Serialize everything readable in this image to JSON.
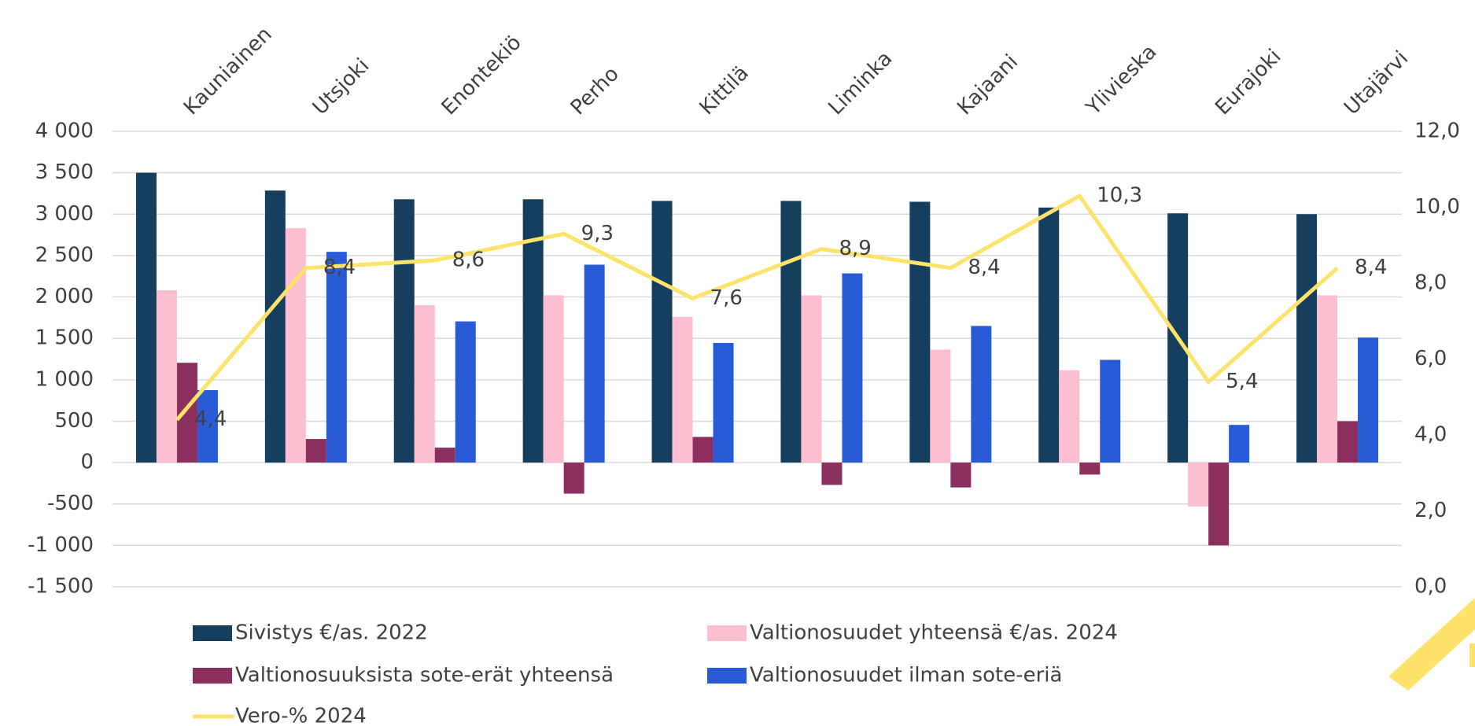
{
  "chart_data": {
    "type": "bar",
    "categories": [
      "Kauniainen",
      "Utsjoki",
      "Enontekiö",
      "Perho",
      "Kittilä",
      "Liminka",
      "Kajaani",
      "Ylivieska",
      "Eurajoki",
      "Utajärvi"
    ],
    "series": [
      {
        "name": "Sivistys €/as. 2022",
        "color": "#163f5f",
        "values": [
          3500,
          3285,
          3180,
          3180,
          3160,
          3160,
          3150,
          3080,
          3010,
          3000
        ]
      },
      {
        "name": "Valtionosuudet yhteensä €/as. 2024",
        "color": "#fcbfcf",
        "values": [
          2080,
          2830,
          1900,
          2020,
          1760,
          2020,
          1365,
          1115,
          -530,
          2020
        ]
      },
      {
        "name": "Valtionosuuksista sote-erät yhteensä",
        "color": "#8b2f5f",
        "values": [
          1205,
          285,
          180,
          -375,
          310,
          -270,
          -300,
          -145,
          -1000,
          500
        ]
      },
      {
        "name": "Valtionosuudet ilman sote-eriä",
        "color": "#2a5bd7",
        "values": [
          875,
          2545,
          1705,
          2390,
          1445,
          2285,
          1650,
          1240,
          455,
          1510
        ]
      },
      {
        "name": "Vero-% 2024",
        "color": "#fde36a",
        "type": "line",
        "axis": "y2",
        "values": [
          4.4,
          8.4,
          8.6,
          9.3,
          7.6,
          8.9,
          8.4,
          10.3,
          5.4,
          8.4
        ],
        "value_labels": [
          "4,4",
          "8,4",
          "8,6",
          "9,3",
          "7,6",
          "8,9",
          "8,4",
          "10,3",
          "5,4",
          "8,4"
        ]
      }
    ],
    "ylim": [
      -1500,
      4000
    ],
    "yticks": [
      {
        "value": -1500,
        "label": "-1 500"
      },
      {
        "value": -1000,
        "label": "-1 000"
      },
      -500,
      0,
      500,
      {
        "value": 1000,
        "label": "1 000"
      },
      {
        "value": 1500,
        "label": "1 500"
      },
      {
        "value": 2000,
        "label": "2 000"
      },
      {
        "value": 2500,
        "label": "2 500"
      },
      {
        "value": 3000,
        "label": "3 000"
      },
      {
        "value": 3500,
        "label": "3 500"
      },
      {
        "value": 4000,
        "label": "4 000"
      }
    ],
    "y2lim": [
      0,
      12
    ],
    "y2ticks": [
      {
        "value": 0,
        "label": "0,0"
      },
      {
        "value": 2,
        "label": "2,0"
      },
      {
        "value": 4,
        "label": "4,0"
      },
      {
        "value": 6,
        "label": "6,0"
      },
      {
        "value": 8,
        "label": "8,0"
      },
      {
        "value": 10,
        "label": "10,0"
      },
      {
        "value": 12,
        "label": "12,0"
      }
    ],
    "grid": true
  }
}
